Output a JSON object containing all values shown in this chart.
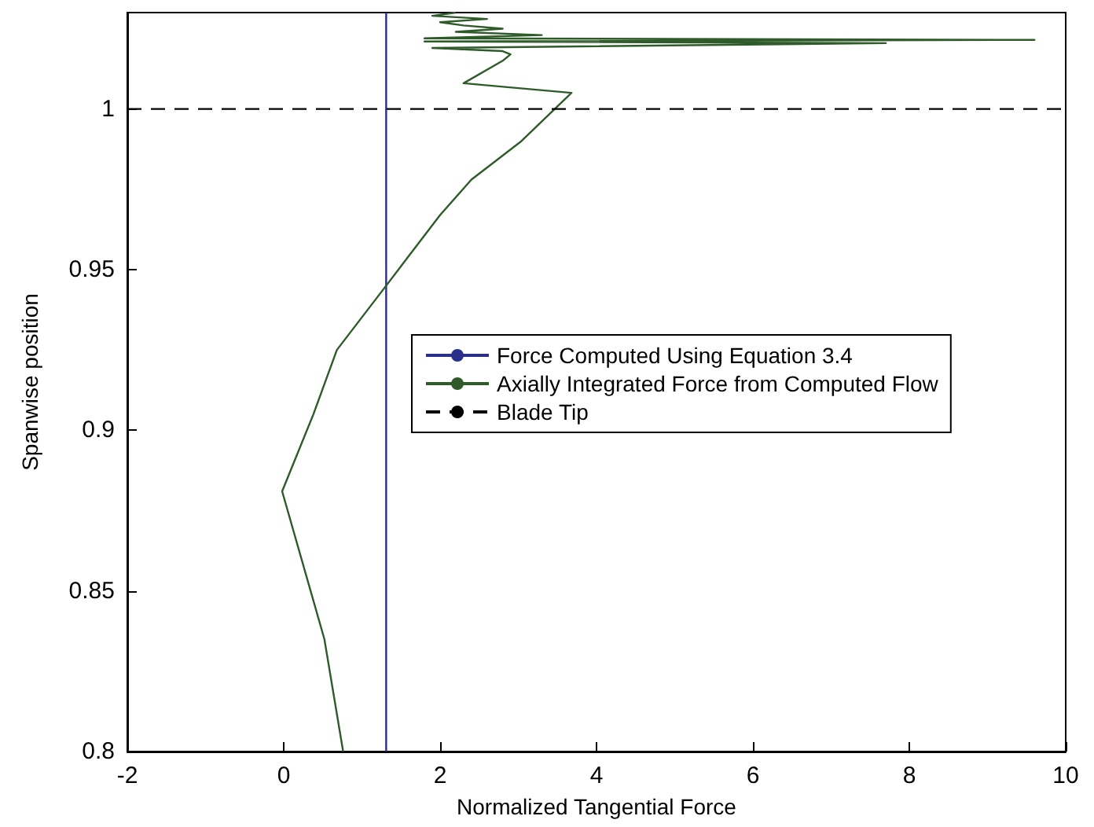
{
  "chart_data": {
    "type": "line",
    "xlabel": "Normalized Tangential Force",
    "ylabel": "Spanwise position",
    "xlim": [
      -2,
      10
    ],
    "xticks": [
      -2,
      0,
      2,
      4,
      6,
      8,
      10
    ],
    "ylim": [
      0.8,
      1.03
    ],
    "yticks": [
      0.8,
      0.85,
      0.9,
      0.95,
      1
    ],
    "grid": false,
    "legend": "right",
    "marker": "none",
    "series": [
      {
        "name": "Force Computed Using Equation 3.4",
        "color": "#2b2f8a",
        "x": [
          1.31,
          1.31
        ],
        "values": [
          0.8,
          1.03
        ]
      },
      {
        "name": "Axially Integrated Force from Computed Flow",
        "color": "#2f5a2a",
        "x": [
          0.76,
          0.52,
          -0.02,
          0.38,
          0.68,
          1.31,
          2.0,
          2.4,
          3.04,
          3.68,
          2.3,
          2.8,
          2.9,
          2.8,
          1.9,
          7.7,
          1.8,
          9.6,
          1.8,
          3.3,
          2.2,
          2.8,
          2.3,
          2.0,
          2.6,
          1.9,
          2.2
        ],
        "values": [
          0.8,
          0.835,
          0.881,
          0.905,
          0.925,
          0.945,
          0.967,
          0.978,
          0.99,
          1.005,
          1.008,
          1.015,
          1.017,
          1.018,
          1.019,
          1.0205,
          1.021,
          1.0215,
          1.022,
          1.023,
          1.024,
          1.025,
          1.026,
          1.027,
          1.028,
          1.029,
          1.03
        ]
      }
    ],
    "ref_lines": [
      {
        "axis": "y",
        "value": 1,
        "label": "Blade Tip",
        "color": "#000000",
        "line_style": "dashed"
      }
    ]
  }
}
